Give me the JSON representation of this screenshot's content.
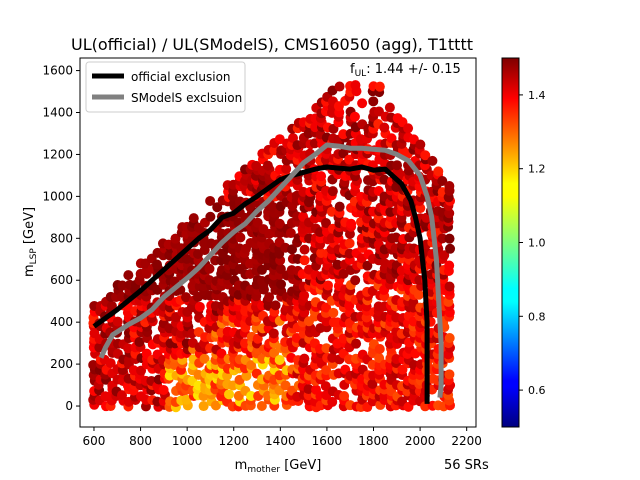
{
  "chart_data": {
    "type": "scatter",
    "title": "UL(official) / UL(SModelS), CMS16050 (agg), T1tttt",
    "xlabel_main": "m",
    "xlabel_sub": "mother",
    "xlabel_unit": " [GeV]",
    "ylabel_main": "m",
    "ylabel_sub": "LSP",
    "ylabel_unit": " [GeV]",
    "xlim": [
      540,
      2240
    ],
    "ylim": [
      -100,
      1660
    ],
    "xticks": [
      600,
      800,
      1000,
      1200,
      1400,
      1600,
      1800,
      2000,
      2200
    ],
    "yticks": [
      0,
      200,
      400,
      600,
      800,
      1000,
      1200,
      1400,
      1600
    ],
    "annotation_f": "f",
    "annotation_sub": "UL",
    "annotation_text": ": 1.44 +/- 0.15",
    "footer": "56 SRs",
    "colorbar": {
      "min": 0.5,
      "max": 1.5,
      "ticks": [
        "0.6",
        "0.8",
        "1.0",
        "1.2",
        "1.4"
      ],
      "tick_values": [
        0.6,
        0.8,
        1.0,
        1.2,
        1.4
      ],
      "colormap": "jet"
    },
    "legend": {
      "placement": "upper-left",
      "entries": [
        {
          "label": "official exclusion",
          "color": "#000000"
        },
        {
          "label": "SModelS exclsuion",
          "color": "#808080"
        }
      ]
    },
    "series": [
      {
        "name": "official exclusion",
        "color": "#000000",
        "points": [
          [
            600,
            380
          ],
          [
            650,
            420
          ],
          [
            700,
            460
          ],
          [
            750,
            505
          ],
          [
            800,
            550
          ],
          [
            850,
            600
          ],
          [
            900,
            650
          ],
          [
            950,
            700
          ],
          [
            1000,
            750
          ],
          [
            1050,
            800
          ],
          [
            1100,
            840
          ],
          [
            1150,
            900
          ],
          [
            1200,
            920
          ],
          [
            1250,
            965
          ],
          [
            1300,
            1000
          ],
          [
            1350,
            1040
          ],
          [
            1400,
            1080
          ],
          [
            1450,
            1100
          ],
          [
            1500,
            1115
          ],
          [
            1550,
            1130
          ],
          [
            1600,
            1140
          ],
          [
            1650,
            1135
          ],
          [
            1700,
            1130
          ],
          [
            1750,
            1140
          ],
          [
            1800,
            1125
          ],
          [
            1850,
            1130
          ],
          [
            1880,
            1100
          ],
          [
            1920,
            1060
          ],
          [
            1960,
            980
          ],
          [
            1980,
            900
          ],
          [
            2000,
            800
          ],
          [
            2010,
            700
          ],
          [
            2020,
            600
          ],
          [
            2025,
            500
          ],
          [
            2030,
            400
          ],
          [
            2030,
            300
          ],
          [
            2030,
            200
          ],
          [
            2030,
            100
          ],
          [
            2030,
            10
          ]
        ]
      },
      {
        "name": "SModelS exclsuion",
        "color": "#808080",
        "points": [
          [
            630,
            230
          ],
          [
            650,
            280
          ],
          [
            680,
            340
          ],
          [
            750,
            390
          ],
          [
            800,
            420
          ],
          [
            850,
            460
          ],
          [
            900,
            520
          ],
          [
            950,
            565
          ],
          [
            1000,
            610
          ],
          [
            1050,
            660
          ],
          [
            1100,
            720
          ],
          [
            1150,
            780
          ],
          [
            1200,
            830
          ],
          [
            1250,
            870
          ],
          [
            1300,
            930
          ],
          [
            1350,
            980
          ],
          [
            1400,
            1040
          ],
          [
            1450,
            1100
          ],
          [
            1500,
            1160
          ],
          [
            1550,
            1200
          ],
          [
            1600,
            1245
          ],
          [
            1650,
            1240
          ],
          [
            1700,
            1230
          ],
          [
            1750,
            1230
          ],
          [
            1800,
            1225
          ],
          [
            1850,
            1220
          ],
          [
            1900,
            1200
          ],
          [
            1950,
            1170
          ],
          [
            2000,
            1100
          ],
          [
            2030,
            1000
          ],
          [
            2050,
            900
          ],
          [
            2060,
            800
          ],
          [
            2070,
            700
          ],
          [
            2075,
            600
          ],
          [
            2080,
            500
          ],
          [
            2085,
            400
          ],
          [
            2090,
            300
          ],
          [
            2090,
            200
          ],
          [
            2090,
            100
          ],
          [
            2085,
            40
          ]
        ]
      }
    ],
    "scatter_description": "Grid of mass points colored by ratio UL(official)/UL(SModelS); values mostly 1.3-1.5 (dark red) with lower values (~1.2) near low m_LSP region around m_mother 1000-1400 GeV"
  }
}
